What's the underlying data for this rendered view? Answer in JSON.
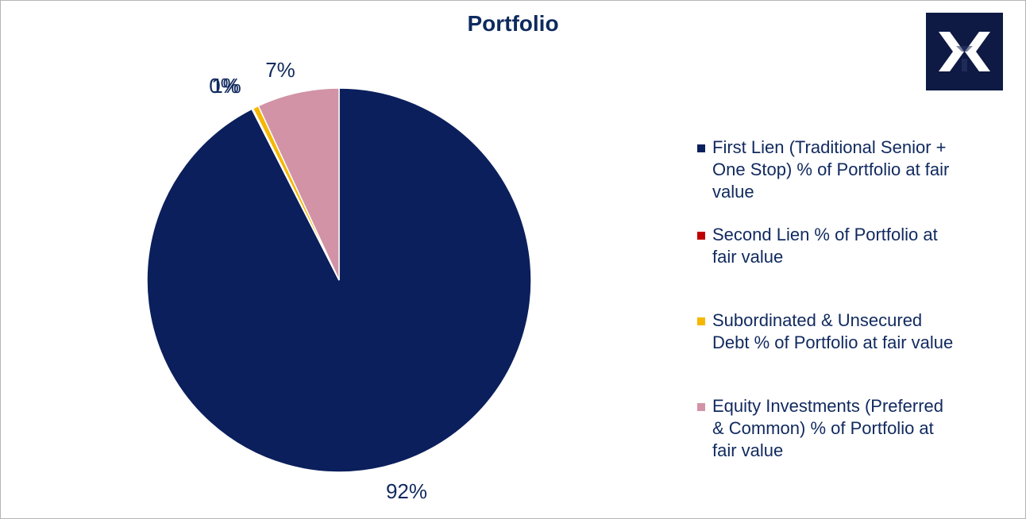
{
  "chart_data": {
    "type": "pie",
    "title": "Portfolio",
    "legend_position": "right",
    "slices": [
      {
        "name": "First Lien (Traditional Senior + One Stop) % of Portfolio at fair value",
        "value": 92.5,
        "label": "92%",
        "color": "#0b1f5c"
      },
      {
        "name": "Second Lien  % of Portfolio at fair value",
        "value": 0.1,
        "label": "0%",
        "color": "#c00000"
      },
      {
        "name": "Subordinated & Unsecured Debt  % of Portfolio at fair value",
        "value": 0.5,
        "label": "1%",
        "color": "#f5b800"
      },
      {
        "name": "Equity Investments (Preferred & Common)  % of Portfolio at fair value",
        "value": 6.9,
        "label": "7%",
        "color": "#d293a6"
      }
    ]
  },
  "logo": {
    "name": "x-logo-icon",
    "bg_color": "#0e1a44",
    "fg_color": "#ffffff"
  }
}
